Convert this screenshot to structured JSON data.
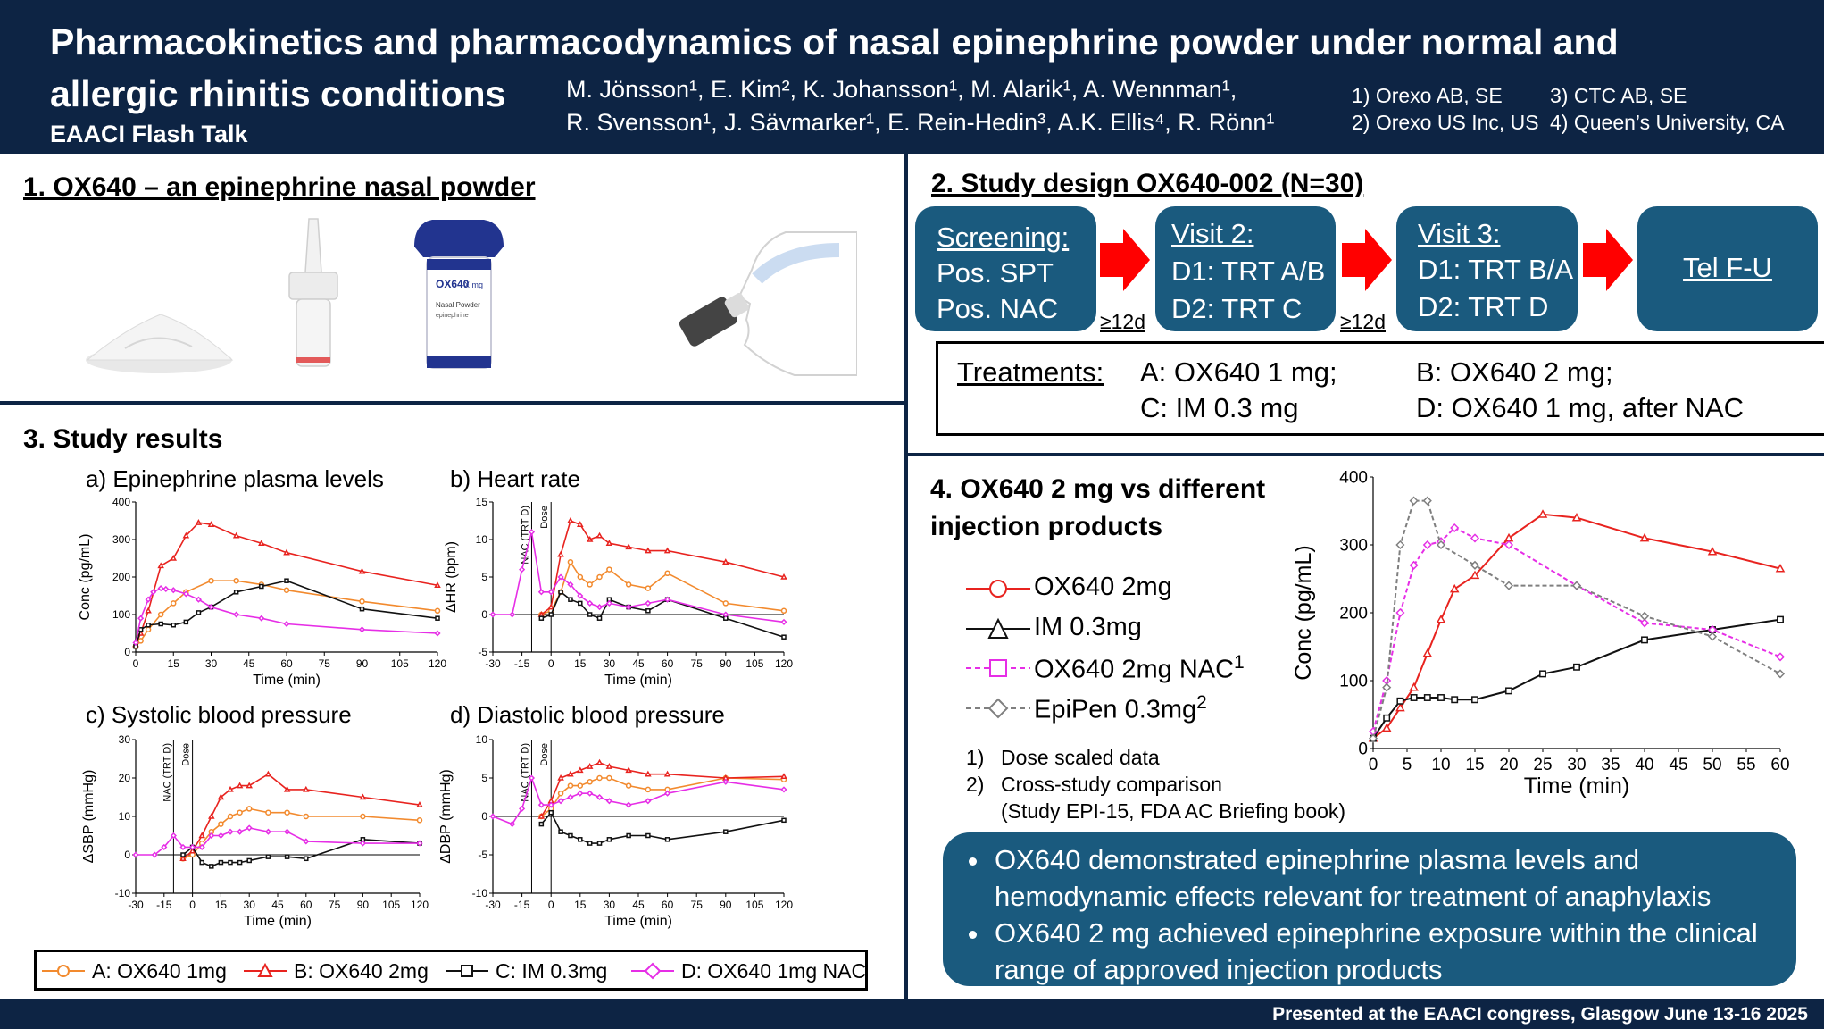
{
  "header": {
    "title_line1": "Pharmacokinetics and pharmacodynamics of nasal epinephrine powder under normal and",
    "title_line2": "allergic rhinitis conditions",
    "subtitle": "EAACI Flash Talk",
    "authors_line1": "M. Jönsson¹, E. Kim², K. Johansson¹, M. Alarik¹, A. Wennman¹,",
    "authors_line2": "R. Svensson¹, J. Sävmarker¹, E. Rein-Hedin³, A.K. Ellis⁴, R. Rönn¹",
    "affiliations": [
      "1) Orexo AB, SE",
      "3) CTC AB, SE",
      "2) Orexo US Inc, US",
      "4) Queen’s University, CA"
    ]
  },
  "section1": {
    "title": "1. OX640 – an epinephrine nasal powder"
  },
  "product": {
    "brand": "OX640",
    "strength": "X mg",
    "label_line1": "Nasal Powder",
    "label_line2": "epinephrine"
  },
  "section2": {
    "title": "2. Study design OX640-002 (N=30)",
    "boxes": [
      {
        "line1": "Screening:",
        "line2": "Pos. SPT",
        "line3": "Pos. NAC"
      },
      {
        "line1": "Visit 2:",
        "line2": "D1: TRT A/B",
        "line3": "D2: TRT C"
      },
      {
        "line1": "Visit 3:",
        "line2": "D1: TRT B/A",
        "line3": "D2: TRT D"
      },
      {
        "line1": "Tel F-U"
      }
    ],
    "gaps": [
      "≥12d",
      "≥12d"
    ],
    "treatments_label": "Treatments:",
    "treatments": [
      "A: OX640 1 mg;",
      "B: OX640 2 mg;",
      "C: IM 0.3 mg",
      "D: OX640 1 mg, after NAC"
    ]
  },
  "section3": {
    "title": "3. Study results",
    "legend": [
      "A: OX640 1mg",
      "B: OX640 2mg",
      "C: IM 0.3mg",
      "D: OX640 1mg NAC"
    ],
    "annot_nac": "NAC (TRT D)",
    "annot_dose": "Dose"
  },
  "section4": {
    "title_line1": "4. OX640 2 mg vs different",
    "title_line2": "injection products",
    "legend": [
      "OX640 2mg",
      "IM 0.3mg",
      "OX640 2mg NAC",
      "EpiPen 0.3mg"
    ],
    "legend_sup": [
      "",
      "",
      "1",
      "2"
    ],
    "notes": [
      "1)",
      "Dose scaled data",
      "2)",
      "Cross-study comparison",
      "(Study EPI-15, FDA AC Briefing book)"
    ]
  },
  "conclusions": [
    "OX640 demonstrated epinephrine plasma levels and hemodynamic effects relevant for treatment of anaphylaxis",
    "OX640 2 mg achieved epinephrine exposure within the clinical range of approved injection products"
  ],
  "footer": "Presented at the EAACI congress, Glasgow June 13-16 2025",
  "colors": {
    "A": "#f28a2e",
    "B": "#e8231f",
    "C": "#111111",
    "D": "#e62ee6",
    "EpiPen": "#7f7f7f",
    "navy": "#0d2444",
    "teal": "#1a5a7e",
    "arrow": "#ff0000"
  },
  "chart_data": [
    {
      "type": "line",
      "title": "a) Epinephrine plasma levels",
      "xlabel": "Time (min)",
      "ylabel": "Conc (pg/mL)",
      "xlim": [
        0,
        120
      ],
      "ylim": [
        0,
        400
      ],
      "xticks": [
        0,
        15,
        30,
        45,
        60,
        75,
        90,
        105,
        120
      ],
      "yticks": [
        0,
        100,
        200,
        300,
        400
      ],
      "series": [
        {
          "key": "A",
          "x": [
            0,
            2,
            5,
            10,
            15,
            20,
            30,
            40,
            50,
            60,
            90,
            120
          ],
          "y": [
            15,
            30,
            60,
            100,
            130,
            160,
            190,
            190,
            180,
            165,
            135,
            110
          ]
        },
        {
          "key": "B",
          "x": [
            0,
            2,
            5,
            10,
            15,
            20,
            25,
            30,
            40,
            50,
            60,
            90,
            120
          ],
          "y": [
            20,
            50,
            110,
            230,
            250,
            310,
            345,
            340,
            310,
            290,
            265,
            215,
            178
          ]
        },
        {
          "key": "C",
          "x": [
            0,
            2,
            5,
            10,
            15,
            20,
            25,
            30,
            40,
            50,
            60,
            90,
            120
          ],
          "y": [
            15,
            60,
            72,
            75,
            72,
            80,
            105,
            120,
            160,
            175,
            190,
            115,
            90
          ]
        },
        {
          "key": "D",
          "x": [
            0,
            2,
            5,
            7,
            10,
            12,
            15,
            20,
            25,
            30,
            40,
            50,
            60,
            90,
            120
          ],
          "y": [
            25,
            90,
            140,
            160,
            170,
            168,
            165,
            155,
            140,
            120,
            100,
            90,
            75,
            60,
            50
          ]
        }
      ]
    },
    {
      "type": "line",
      "title": "b) Heart rate",
      "xlabel": "Time (min)",
      "ylabel": "ΔHR (bpm)",
      "xlim": [
        -30,
        120
      ],
      "ylim": [
        -5,
        15
      ],
      "xticks": [
        -30,
        -15,
        0,
        15,
        30,
        45,
        60,
        75,
        90,
        105,
        120
      ],
      "yticks": [
        -5,
        0,
        5,
        10,
        15
      ],
      "series": [
        {
          "key": "A",
          "x": [
            -5,
            0,
            5,
            10,
            15,
            20,
            25,
            30,
            40,
            50,
            60,
            90,
            120
          ],
          "y": [
            0,
            0.5,
            3,
            7,
            5,
            4,
            5,
            6,
            4,
            3.5,
            5.5,
            1.5,
            0.5
          ]
        },
        {
          "key": "B",
          "x": [
            -5,
            0,
            5,
            10,
            15,
            20,
            25,
            30,
            40,
            50,
            60,
            90,
            120
          ],
          "y": [
            0,
            1,
            8,
            12.5,
            12,
            10,
            10.5,
            9.5,
            9,
            8.5,
            8.5,
            7,
            5
          ]
        },
        {
          "key": "C",
          "x": [
            -5,
            0,
            5,
            10,
            15,
            20,
            25,
            30,
            40,
            50,
            60,
            90,
            120
          ],
          "y": [
            -0.5,
            0,
            3,
            2,
            1.5,
            0,
            -0.5,
            2,
            1,
            0.5,
            2,
            -0.5,
            -3
          ]
        },
        {
          "key": "D",
          "x": [
            -30,
            -20,
            -15,
            -10,
            -5,
            0,
            5,
            10,
            15,
            20,
            25,
            30,
            40,
            50,
            60,
            90,
            120
          ],
          "y": [
            0,
            0,
            6,
            11,
            3,
            3,
            5,
            4,
            2.5,
            1.5,
            1,
            1.5,
            1,
            1.5,
            2,
            0,
            -1
          ]
        }
      ]
    },
    {
      "type": "line",
      "title": "c) Systolic blood pressure",
      "xlabel": "Time (min)",
      "ylabel": "ΔSBP (mmHg)",
      "xlim": [
        -30,
        120
      ],
      "ylim": [
        -10,
        30
      ],
      "xticks": [
        -30,
        -15,
        0,
        15,
        30,
        45,
        60,
        75,
        90,
        105,
        120
      ],
      "yticks": [
        -10,
        0,
        10,
        20,
        30
      ],
      "series": [
        {
          "key": "A",
          "x": [
            -5,
            0,
            5,
            10,
            15,
            20,
            25,
            30,
            40,
            50,
            60,
            90,
            120
          ],
          "y": [
            -1,
            0,
            3,
            6,
            8,
            10,
            11,
            12,
            11,
            11,
            10,
            10,
            9
          ]
        },
        {
          "key": "B",
          "x": [
            -5,
            0,
            5,
            10,
            15,
            20,
            25,
            30,
            40,
            50,
            60,
            90,
            120
          ],
          "y": [
            -1,
            1,
            5,
            10,
            15,
            17,
            18,
            18,
            21,
            17,
            17,
            15,
            13
          ]
        },
        {
          "key": "C",
          "x": [
            -5,
            0,
            5,
            10,
            15,
            20,
            25,
            30,
            40,
            50,
            60,
            90,
            120
          ],
          "y": [
            0,
            2,
            -2,
            -3,
            -2,
            -2,
            -2,
            -1.5,
            -0.5,
            -0.5,
            -1,
            4,
            3
          ]
        },
        {
          "key": "D",
          "x": [
            -30,
            -20,
            -15,
            -10,
            -5,
            0,
            5,
            10,
            15,
            20,
            25,
            30,
            40,
            50,
            60,
            90,
            120
          ],
          "y": [
            0,
            0,
            2,
            5,
            2,
            2,
            2,
            5,
            5,
            6,
            6,
            7,
            6,
            6,
            3.5,
            3,
            3
          ]
        }
      ]
    },
    {
      "type": "line",
      "title": "d) Diastolic blood pressure",
      "xlabel": "Time (min)",
      "ylabel": "ΔDBP (mmHg)",
      "xlim": [
        -30,
        120
      ],
      "ylim": [
        -10,
        10
      ],
      "xticks": [
        -30,
        -15,
        0,
        15,
        30,
        45,
        60,
        75,
        90,
        105,
        120
      ],
      "yticks": [
        -10,
        -5,
        0,
        5,
        10
      ],
      "series": [
        {
          "key": "A",
          "x": [
            -5,
            0,
            5,
            10,
            15,
            20,
            25,
            30,
            40,
            50,
            60,
            90,
            120
          ],
          "y": [
            0,
            1,
            3,
            4,
            4,
            4.5,
            5,
            5,
            4,
            3.5,
            3.5,
            5,
            4.8
          ]
        },
        {
          "key": "B",
          "x": [
            -5,
            0,
            5,
            10,
            15,
            20,
            25,
            30,
            40,
            50,
            60,
            90,
            120
          ],
          "y": [
            0,
            2,
            5,
            5.5,
            6,
            6.5,
            7,
            6.5,
            6,
            5.5,
            5.5,
            5,
            5.2
          ]
        },
        {
          "key": "C",
          "x": [
            -5,
            0,
            5,
            10,
            15,
            20,
            25,
            30,
            40,
            50,
            60,
            90,
            120
          ],
          "y": [
            -1,
            0.5,
            -2,
            -2.5,
            -3,
            -3.5,
            -3.5,
            -3,
            -2.5,
            -2.5,
            -3,
            -2,
            -0.5
          ]
        },
        {
          "key": "D",
          "x": [
            -30,
            -20,
            -15,
            -10,
            -5,
            0,
            5,
            10,
            15,
            20,
            25,
            30,
            40,
            50,
            60,
            90,
            120
          ],
          "y": [
            0,
            -1,
            1,
            5,
            1.5,
            1.5,
            2,
            2.5,
            3,
            3,
            2.5,
            2,
            1.5,
            2,
            3,
            4.5,
            3.5
          ]
        }
      ]
    },
    {
      "type": "line",
      "title": "",
      "xlabel": "Time (min)",
      "ylabel": "Conc (pg/mL)",
      "xlim": [
        0,
        60
      ],
      "ylim": [
        0,
        400
      ],
      "xticks": [
        0,
        5,
        10,
        15,
        20,
        25,
        30,
        35,
        40,
        45,
        50,
        55,
        60
      ],
      "yticks": [
        0,
        100,
        200,
        300,
        400
      ],
      "series": [
        {
          "key": "B",
          "name": "OX640 2mg",
          "x": [
            0,
            2,
            4,
            6,
            8,
            10,
            12,
            15,
            20,
            25,
            30,
            40,
            50,
            60
          ],
          "y": [
            15,
            30,
            60,
            90,
            140,
            190,
            235,
            255,
            310,
            345,
            340,
            310,
            290,
            265
          ]
        },
        {
          "key": "C",
          "name": "IM 0.3mg",
          "x": [
            0,
            2,
            4,
            6,
            8,
            10,
            12,
            15,
            20,
            25,
            30,
            40,
            50,
            60
          ],
          "y": [
            15,
            45,
            70,
            75,
            75,
            75,
            72,
            72,
            85,
            110,
            120,
            160,
            175,
            190
          ]
        },
        {
          "key": "D",
          "name": "OX640 2mg NAC",
          "x": [
            0,
            2,
            4,
            6,
            8,
            10,
            12,
            15,
            20,
            30,
            40,
            50,
            60
          ],
          "y": [
            25,
            100,
            200,
            270,
            300,
            305,
            325,
            310,
            300,
            240,
            185,
            175,
            135
          ]
        },
        {
          "key": "EpiPen",
          "name": "EpiPen 0.3mg",
          "x": [
            0,
            2,
            4,
            6,
            8,
            10,
            15,
            20,
            30,
            40,
            50,
            60
          ],
          "y": [
            15,
            90,
            300,
            365,
            365,
            300,
            270,
            240,
            240,
            195,
            165,
            110
          ]
        }
      ]
    }
  ]
}
